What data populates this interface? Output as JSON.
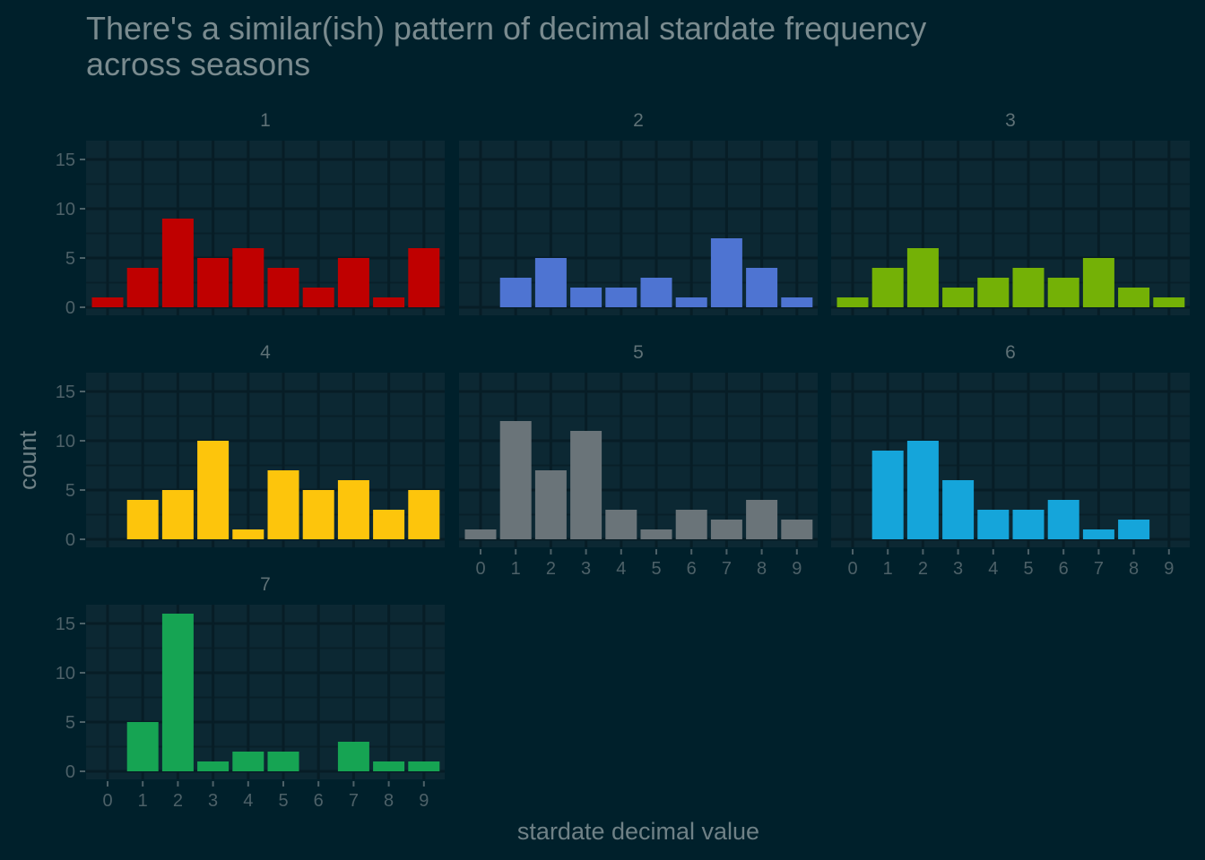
{
  "chart_data": {
    "type": "bar",
    "title": "There's a similar(ish) pattern of decimal stardate frequency across seasons",
    "title_lines": [
      "There's a similar(ish) pattern of decimal stardate frequency",
      "across seasons"
    ],
    "xlabel": "stardate decimal value",
    "ylabel": "count",
    "categories": [
      "0",
      "1",
      "2",
      "3",
      "4",
      "5",
      "6",
      "7",
      "8",
      "9"
    ],
    "y_ticks": [
      "0",
      "5",
      "10",
      "15"
    ],
    "ylim": [
      0,
      16.8
    ],
    "grid": true,
    "legend": "none",
    "facets": [
      {
        "name": "1",
        "color": "#bf0000",
        "values": [
          1,
          4,
          9,
          5,
          6,
          4,
          2,
          5,
          1,
          6
        ]
      },
      {
        "name": "2",
        "color": "#4e74d2",
        "values": [
          0,
          3,
          5,
          2,
          2,
          3,
          1,
          7,
          4,
          1
        ]
      },
      {
        "name": "3",
        "color": "#74b106",
        "values": [
          1,
          4,
          6,
          2,
          3,
          4,
          3,
          5,
          2,
          1
        ]
      },
      {
        "name": "4",
        "color": "#fdc50c",
        "values": [
          0,
          4,
          5,
          10,
          1,
          7,
          5,
          6,
          3,
          5
        ]
      },
      {
        "name": "5",
        "color": "#6a7479",
        "values": [
          1,
          12,
          7,
          11,
          3,
          1,
          3,
          2,
          4,
          2
        ]
      },
      {
        "name": "6",
        "color": "#15a5da",
        "values": [
          0,
          9,
          10,
          6,
          3,
          3,
          4,
          1,
          2,
          0
        ]
      },
      {
        "name": "7",
        "color": "#16a453",
        "values": [
          0,
          5,
          16,
          1,
          2,
          2,
          0,
          3,
          1,
          1
        ]
      }
    ]
  }
}
